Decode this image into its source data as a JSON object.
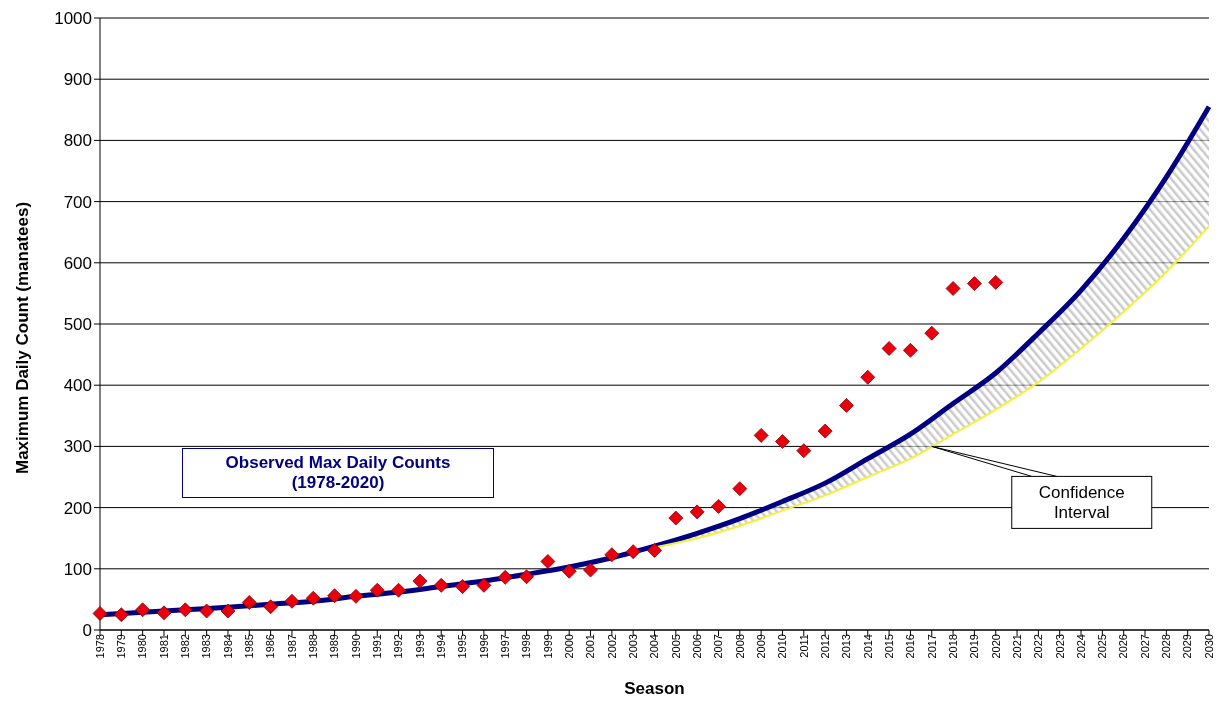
{
  "chart_data": {
    "type": "line",
    "xlabel": "Season",
    "ylabel": "Maximum Daily Count (manatees)",
    "categories": [
      "1978",
      "1979",
      "1980",
      "1981",
      "1982",
      "1983",
      "1984",
      "1985",
      "1986",
      "1987",
      "1988",
      "1989",
      "1990",
      "1991",
      "1992",
      "1993",
      "1994",
      "1995",
      "1996",
      "1997",
      "1998",
      "1999",
      "2000",
      "2001",
      "2002",
      "2003",
      "2004",
      "2005",
      "2006",
      "2007",
      "2008",
      "2009",
      "2010",
      "2011",
      "2012",
      "2013",
      "2014",
      "2015",
      "2016",
      "2017",
      "2018",
      "2019",
      "2020",
      "2021",
      "2022",
      "2023",
      "2024",
      "2025",
      "2026",
      "2027",
      "2028",
      "2029",
      "2030"
    ],
    "series": [
      {
        "color": "#000080",
        "values": [
          25,
          null,
          29,
          null,
          33,
          null,
          37,
          null,
          42,
          null,
          47,
          null,
          55,
          null,
          62,
          null,
          71,
          null,
          80,
          null,
          91,
          null,
          103,
          null,
          118,
          null,
          137,
          null,
          158,
          null,
          182,
          null,
          210,
          null,
          240,
          null,
          280,
          null,
          320,
          null,
          370,
          null,
          420,
          null,
          485,
          null,
          555,
          null,
          640,
          null,
          740,
          null,
          855
        ],
        "lower": [
          null,
          null,
          null,
          null,
          null,
          null,
          null,
          null,
          null,
          null,
          null,
          null,
          null,
          null,
          null,
          null,
          null,
          null,
          null,
          null,
          null,
          null,
          null,
          null,
          null,
          null,
          135,
          null,
          150,
          null,
          170,
          null,
          195,
          null,
          220,
          null,
          250,
          null,
          280,
          null,
          320,
          null,
          360,
          null,
          405,
          null,
          460,
          null,
          520,
          null,
          585,
          null,
          660
        ],
        "upper": [
          null,
          null,
          null,
          null,
          null,
          null,
          null,
          null,
          null,
          null,
          null,
          null,
          null,
          null,
          null,
          null,
          null,
          null,
          null,
          null,
          null,
          null,
          null,
          null,
          null,
          null,
          137,
          null,
          158,
          null,
          182,
          null,
          210,
          null,
          240,
          null,
          280,
          null,
          320,
          null,
          370,
          null,
          420,
          null,
          485,
          null,
          555,
          null,
          640,
          null,
          740,
          null,
          855
        ]
      },
      {
        "color": "#f2f23c",
        "values": [
          null,
          null,
          null,
          null,
          null,
          null,
          null,
          null,
          null,
          null,
          null,
          null,
          null,
          null,
          null,
          null,
          null,
          null,
          null,
          null,
          null,
          null,
          null,
          null,
          null,
          null,
          135,
          null,
          150,
          null,
          170,
          null,
          195,
          null,
          220,
          null,
          250,
          null,
          280,
          null,
          320,
          null,
          360,
          null,
          405,
          null,
          460,
          null,
          520,
          null,
          585,
          null,
          660
        ]
      },
      {
        "type": "scatter",
        "color": "#e8000f",
        "marker": "diamond",
        "values": [
          27,
          25,
          33,
          28,
          33,
          31,
          31,
          45,
          38,
          47,
          52,
          56,
          55,
          65,
          65,
          80,
          73,
          71,
          73,
          86,
          87,
          112,
          96,
          98,
          123,
          128,
          130,
          183,
          193,
          202,
          231,
          318,
          308,
          293,
          325,
          367,
          413,
          460,
          457,
          485,
          558,
          566,
          568,
          null,
          null,
          null,
          null,
          null,
          null,
          null,
          null,
          null,
          null
        ]
      }
    ],
    "ylim": [
      0,
      1000
    ],
    "yticks": [
      0,
      100,
      200,
      300,
      400,
      500,
      600,
      700,
      800,
      900,
      1000
    ],
    "grid": "y",
    "legend": false,
    "annotations": [
      "Observed Max Daily Counts\n(1978-2020)",
      {
        "text": "Confidence Interval",
        "x": "2017",
        "y": 300
      }
    ]
  }
}
